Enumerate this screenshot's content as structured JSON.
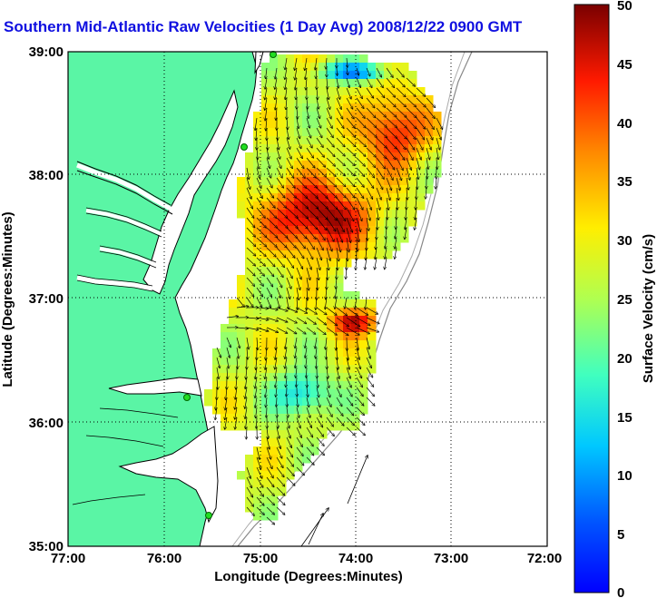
{
  "title": "Southern Mid-Atlantic Raw Velocities (1 Day Avg) 2008/12/22 0900 GMT",
  "x_axis": {
    "label": "Longitude (Degrees:Minutes)",
    "ticks": [
      "77:00",
      "76:00",
      "75:00",
      "74:00",
      "73:00",
      "72:00"
    ]
  },
  "y_axis": {
    "label": "Latitude (Degrees:Minutes)",
    "ticks": [
      "39:00",
      "38:00",
      "37:00",
      "36:00",
      "35:00"
    ]
  },
  "colorbar": {
    "label": "Surface Velocity (cm/s)",
    "ticks": [
      "50",
      "45",
      "40",
      "35",
      "30",
      "25",
      "20",
      "15",
      "10",
      "5",
      "0"
    ],
    "min": 0,
    "max": 50,
    "colormap": "jet"
  },
  "colors": {
    "land": "#5af5a5",
    "title": "#1010e0",
    "station": "#22dd22"
  },
  "map_extent": {
    "lon": [
      -77,
      -72
    ],
    "lat": [
      35,
      39
    ]
  }
}
